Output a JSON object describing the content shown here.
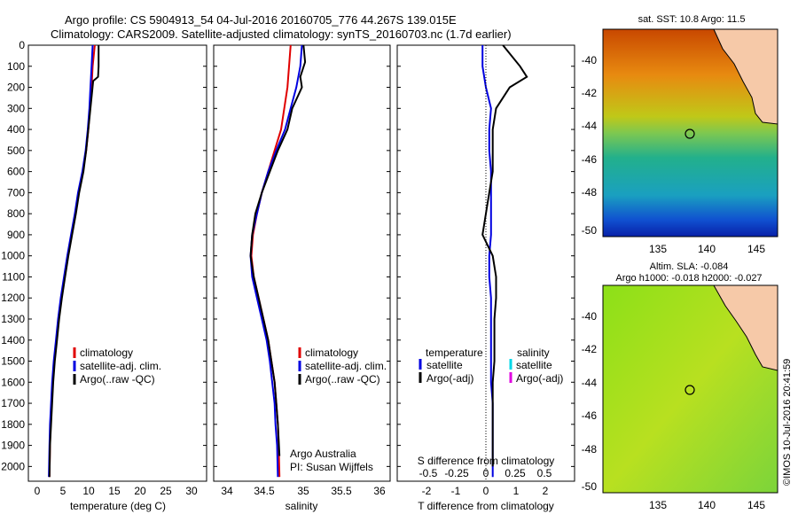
{
  "header": {
    "line1": "Argo profile: CS 5904913_54 04-Jul-2016 20160705_776 44.267S 139.015E",
    "line2": "Climatology: CARS2009. Satellite-adjusted climatology: synTS_20160703.nc (1.7d earlier)"
  },
  "colors": {
    "climatology": "#e00000",
    "satellite": "#0000e0",
    "argo": "#000000",
    "sal_satellite": "#00d8e8",
    "sal_argo": "#e000e0"
  },
  "depth_ticks": [
    "0",
    "100",
    "200",
    "300",
    "400",
    "500",
    "600",
    "700",
    "800",
    "900",
    "1000",
    "1100",
    "1200",
    "1300",
    "1400",
    "1500",
    "1600",
    "1700",
    "1800",
    "1900",
    "2000"
  ],
  "panels": {
    "temperature": {
      "xlabel": "temperature (deg C)",
      "xticks": [
        "0",
        "5",
        "10",
        "15",
        "20",
        "25",
        "30"
      ],
      "legend": [
        "climatology",
        "satellite-adj. clim.",
        "Argo(..raw -QC)"
      ]
    },
    "salinity": {
      "xlabel": "salinity",
      "xticks": [
        "34",
        "34.5",
        "35",
        "35.5",
        "36"
      ],
      "legend": [
        "climatology",
        "satellite-adj. clim.",
        "Argo(..raw -QC)"
      ],
      "note1": "Argo Australia",
      "note2": "PI: Susan Wijffels"
    },
    "difference": {
      "xlabel": "T difference from climatology",
      "xticks": [
        "-2",
        "-1",
        "0",
        "1",
        "2"
      ],
      "s_label": "S difference from climatology",
      "s_ticks": [
        "-0.5",
        "-0.25",
        "0",
        "0.25",
        "0.5"
      ],
      "legend_t_title": "temperature",
      "legend_s_title": "salinity",
      "legend_items": [
        "satellite",
        "Argo(-adj)"
      ]
    }
  },
  "maps": {
    "sst": {
      "title": "sat. SST: 10.8 Argo: 11.5",
      "yticks": [
        "-40",
        "-42",
        "-44",
        "-46",
        "-48",
        "-50"
      ],
      "xticks": [
        "135",
        "140",
        "145"
      ]
    },
    "sla": {
      "title1": "Altim. SLA: -0.084",
      "title2": "Argo h1000: -0.018 h2000: -0.027",
      "yticks": [
        "-40",
        "-42",
        "-44",
        "-46",
        "-48",
        "-50"
      ],
      "xticks": [
        "135",
        "140",
        "145"
      ]
    }
  },
  "credit": "©IMOS 10-Jul-2016 20:41:59",
  "chart_data": [
    {
      "type": "line",
      "xlabel": "temperature (deg C)",
      "ylabel": "",
      "xlim": [
        -1.5,
        31.5
      ],
      "ylim": [
        2070,
        0
      ],
      "series": [
        {
          "name": "climatology",
          "x": [
            10.8,
            10.4,
            10.2,
            9.9,
            9.6,
            9.2,
            8.6,
            7.8,
            7.2,
            6.5,
            5.8,
            5.2,
            4.6,
            4.1,
            3.7,
            3.3,
            3.0,
            2.8,
            2.6,
            2.5,
            2.4
          ],
          "y": [
            0,
            100,
            200,
            300,
            400,
            500,
            600,
            700,
            800,
            900,
            1000,
            1100,
            1200,
            1300,
            1400,
            1500,
            1600,
            1700,
            1800,
            1900,
            2050
          ]
        },
        {
          "name": "satellite-adj. clim.",
          "x": [
            10.4,
            10.2,
            10.0,
            9.8,
            9.5,
            9.1,
            8.5,
            7.7,
            7.1,
            6.4,
            5.7,
            5.1,
            4.5,
            4.0,
            3.6,
            3.2,
            2.9,
            2.7,
            2.5,
            2.4,
            2.3
          ],
          "y": [
            0,
            100,
            200,
            300,
            400,
            500,
            600,
            700,
            800,
            900,
            1000,
            1100,
            1200,
            1300,
            1400,
            1500,
            1600,
            1700,
            1800,
            1900,
            2050
          ]
        },
        {
          "name": "Argo(..raw -QC)",
          "x": [
            11.5,
            11.5,
            11.4,
            10.5,
            10.0,
            9.6,
            9.2,
            8.7,
            7.9,
            7.3,
            6.6,
            5.9,
            5.3,
            4.7,
            4.2,
            3.8,
            3.4,
            3.1,
            2.9,
            2.7,
            2.5,
            2.4
          ],
          "y": [
            0,
            100,
            150,
            170,
            300,
            400,
            500,
            600,
            700,
            800,
            900,
            1000,
            1100,
            1200,
            1300,
            1400,
            1500,
            1600,
            1700,
            1800,
            1900,
            2050
          ]
        }
      ]
    },
    {
      "type": "line",
      "xlabel": "salinity",
      "ylabel": "",
      "xlim": [
        33.9,
        36.1
      ],
      "ylim": [
        2070,
        0
      ],
      "series": [
        {
          "name": "climatology",
          "x": [
            34.86,
            34.84,
            34.82,
            34.78,
            34.74,
            34.66,
            34.58,
            34.5,
            34.44,
            34.39,
            34.37,
            34.4,
            34.46,
            34.52,
            34.58,
            34.62,
            34.66,
            34.68,
            34.7,
            34.71,
            34.72
          ],
          "y": [
            0,
            100,
            200,
            300,
            400,
            500,
            600,
            700,
            800,
            900,
            1000,
            1100,
            1200,
            1300,
            1400,
            1500,
            1600,
            1700,
            1800,
            1900,
            2050
          ]
        },
        {
          "name": "satellite-adj. clim.",
          "x": [
            35.0,
            34.98,
            34.93,
            34.86,
            34.79,
            34.68,
            34.58,
            34.5,
            34.44,
            34.38,
            34.36,
            34.38,
            34.44,
            34.5,
            34.56,
            34.6,
            34.63,
            34.66,
            34.67,
            34.69,
            34.7
          ],
          "y": [
            0,
            100,
            200,
            300,
            400,
            500,
            600,
            700,
            800,
            900,
            1000,
            1100,
            1200,
            1300,
            1400,
            1500,
            1600,
            1700,
            1800,
            1900,
            2050
          ]
        },
        {
          "name": "Argo(..raw -QC)",
          "x": [
            35.02,
            35.04,
            34.98,
            35.0,
            34.88,
            34.82,
            34.7,
            34.6,
            34.5,
            34.42,
            34.38,
            34.36,
            34.4,
            34.46,
            34.52,
            34.58,
            34.62,
            34.66,
            34.68,
            34.7,
            34.72
          ],
          "y": [
            0,
            80,
            150,
            200,
            300,
            400,
            500,
            600,
            700,
            800,
            900,
            1000,
            1100,
            1200,
            1300,
            1400,
            1500,
            1600,
            1700,
            1800,
            1950
          ]
        }
      ]
    },
    {
      "type": "line",
      "xlabel": "T difference from climatology",
      "ylabel": "",
      "xlim": [
        -2.8,
        2.4
      ],
      "ylim": [
        2070,
        0
      ],
      "series": [
        {
          "name": "satellite",
          "x": [
            -0.3,
            -0.3,
            -0.2,
            -0.05,
            -0.1,
            -0.1,
            -0.05,
            -0.05,
            -0.05,
            -0.05,
            -0.1,
            -0.1,
            -0.05,
            -0.05,
            -0.05,
            -0.05,
            -0.05,
            0,
            0,
            0,
            0
          ],
          "y": [
            0,
            100,
            200,
            300,
            400,
            500,
            600,
            700,
            800,
            900,
            1000,
            1100,
            1200,
            1300,
            1400,
            1500,
            1600,
            1700,
            1800,
            1900,
            2050
          ]
        },
        {
          "name": "Argo(-adj)",
          "x": [
            0.3,
            0.8,
            1.0,
            0.5,
            0.1,
            0,
            0,
            0,
            -0.1,
            -0.2,
            -0.3,
            0,
            0.1,
            0.1,
            0.05,
            0.05,
            0.05,
            0,
            0,
            0,
            0
          ],
          "y": [
            0,
            100,
            150,
            200,
            300,
            400,
            500,
            600,
            700,
            800,
            900,
            1000,
            1100,
            1200,
            1300,
            1400,
            1500,
            1600,
            1700,
            1800,
            2000
          ]
        }
      ]
    }
  ]
}
